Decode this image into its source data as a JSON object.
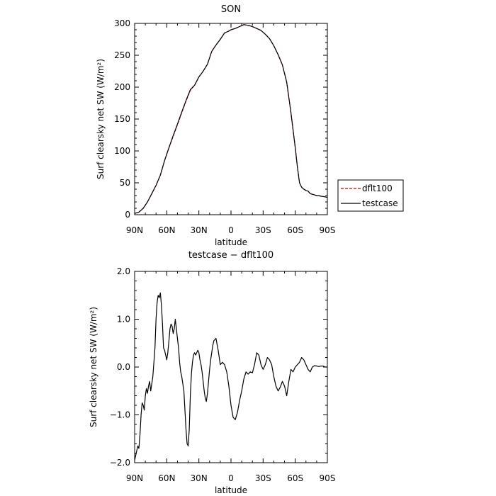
{
  "chart_data": [
    {
      "type": "line",
      "title": "SON",
      "xlabel": "latitude",
      "ylabel": "Surf clearsky net SW (W/m²)",
      "xlim": [
        90,
        -90
      ],
      "ylim": [
        0,
        300
      ],
      "xticks": [
        90,
        60,
        30,
        0,
        -30,
        -60,
        -90
      ],
      "xticklabels": [
        "90N",
        "60N",
        "30N",
        "0",
        "30S",
        "60S",
        "90S"
      ],
      "yticks": [
        0,
        50,
        100,
        150,
        200,
        250,
        300
      ],
      "yticklabels": [
        "0",
        "50",
        "100",
        "150",
        "200",
        "250",
        "300"
      ],
      "legend": {
        "position": "right",
        "entries": [
          "dflt100",
          "testcase"
        ]
      },
      "series": [
        {
          "name": "dflt100",
          "color": "#cc0000",
          "dash": "dashed",
          "x": [
            90,
            86,
            82,
            78,
            74,
            70,
            66,
            62,
            58,
            54,
            50,
            46,
            42,
            38,
            34,
            30,
            26,
            22,
            18,
            14,
            10,
            6,
            2,
            0,
            -4,
            -8,
            -12,
            -16,
            -20,
            -24,
            -28,
            -32,
            -36,
            -40,
            -44,
            -48,
            -52,
            -56,
            -60,
            -62,
            -64,
            -66,
            -68,
            -70,
            -72,
            -74,
            -76,
            -78,
            -80,
            -82,
            -84,
            -88,
            -90
          ],
          "y": [
            2,
            4,
            10,
            20,
            33,
            46,
            62,
            85,
            105,
            123,
            141,
            160,
            178,
            195,
            203,
            216,
            225,
            236,
            256,
            266,
            275,
            285,
            288,
            290,
            292,
            295,
            298,
            297,
            295,
            292,
            289,
            283,
            276,
            265,
            251,
            235,
            208,
            160,
            105,
            75,
            50,
            43,
            40,
            38,
            37,
            33,
            32,
            31,
            30,
            30,
            29,
            28,
            27
          ]
        },
        {
          "name": "testcase",
          "color": "#000000",
          "dash": "solid",
          "x": [
            90,
            86,
            82,
            78,
            74,
            70,
            66,
            62,
            58,
            54,
            50,
            46,
            42,
            38,
            34,
            30,
            26,
            22,
            18,
            14,
            10,
            6,
            2,
            0,
            -4,
            -8,
            -12,
            -16,
            -20,
            -24,
            -28,
            -32,
            -36,
            -40,
            -44,
            -48,
            -52,
            -56,
            -60,
            -62,
            -64,
            -66,
            -68,
            -70,
            -72,
            -74,
            -76,
            -78,
            -80,
            -82,
            -84,
            -88,
            -90
          ],
          "y": [
            2,
            4,
            10,
            20,
            33,
            46,
            62,
            85,
            105,
            124,
            142,
            161,
            179,
            196,
            203,
            216,
            225,
            236,
            256,
            266,
            275,
            285,
            288,
            290,
            292,
            295,
            298,
            297,
            295,
            292,
            289,
            283,
            276,
            265,
            251,
            235,
            208,
            160,
            105,
            75,
            50,
            43,
            40,
            38,
            37,
            33,
            32,
            31,
            30,
            30,
            29,
            28,
            27
          ]
        }
      ]
    },
    {
      "type": "line",
      "title": "testcase − dflt100",
      "xlabel": "latitude",
      "ylabel": "Surf clearsky net SW (W/m²)",
      "xlim": [
        90,
        -90
      ],
      "ylim": [
        -2.0,
        2.0
      ],
      "xticks": [
        90,
        60,
        30,
        0,
        -30,
        -60,
        -90
      ],
      "xticklabels": [
        "90N",
        "60N",
        "30N",
        "0",
        "30S",
        "60S",
        "90S"
      ],
      "yticks": [
        -2.0,
        -1.0,
        0.0,
        1.0,
        2.0
      ],
      "yticklabels": [
        "−2.0",
        "−1.0",
        "0.0",
        "1.0",
        "2.0"
      ],
      "series": [
        {
          "color": "#000000",
          "dash": "solid",
          "x": [
            90,
            88,
            87,
            86,
            85,
            84,
            83,
            82,
            81,
            80,
            79,
            78,
            77,
            76,
            75,
            73,
            71,
            70,
            69,
            68,
            67,
            66,
            65,
            64,
            63,
            62,
            61,
            60,
            59,
            58,
            57,
            56,
            55,
            54,
            53,
            52,
            51,
            50,
            49,
            48,
            47,
            46,
            45,
            44,
            43,
            42,
            41,
            40,
            39,
            38,
            37,
            36,
            35,
            34,
            33,
            32,
            31,
            30,
            29,
            28,
            27,
            26,
            25,
            24,
            23,
            22,
            21,
            20,
            19,
            18,
            17,
            16,
            14,
            12,
            10,
            8,
            6,
            4,
            2,
            0,
            -2,
            -4,
            -6,
            -8,
            -10,
            -12,
            -14,
            -16,
            -18,
            -20,
            -22,
            -24,
            -26,
            -28,
            -30,
            -32,
            -34,
            -36,
            -38,
            -40,
            -42,
            -44,
            -46,
            -48,
            -50,
            -52,
            -54,
            -56,
            -58,
            -60,
            -62,
            -64,
            -66,
            -68,
            -70,
            -72,
            -74,
            -76,
            -78,
            -80,
            -82,
            -84,
            -86,
            -88,
            -90
          ],
          "y": [
            -1.95,
            -1.75,
            -1.65,
            -1.7,
            -1.4,
            -1.0,
            -0.75,
            -0.8,
            -0.9,
            -0.6,
            -0.45,
            -0.55,
            -0.4,
            -0.3,
            -0.5,
            -0.2,
            0.4,
            1.0,
            1.35,
            1.5,
            1.45,
            1.55,
            1.3,
            0.9,
            0.4,
            0.35,
            0.25,
            0.15,
            0.3,
            0.55,
            0.8,
            0.9,
            0.85,
            0.7,
            0.8,
            1.0,
            0.8,
            0.6,
            0.4,
            0.1,
            -0.1,
            -0.2,
            -0.35,
            -0.5,
            -0.9,
            -1.3,
            -1.6,
            -1.65,
            -1.3,
            -0.6,
            -0.15,
            0.1,
            0.25,
            0.3,
            0.25,
            0.3,
            0.35,
            0.3,
            0.15,
            0.05,
            -0.1,
            -0.3,
            -0.5,
            -0.65,
            -0.72,
            -0.55,
            -0.3,
            -0.05,
            0.15,
            0.3,
            0.45,
            0.55,
            0.6,
            0.35,
            0.05,
            0.1,
            0.05,
            -0.1,
            -0.4,
            -0.8,
            -1.05,
            -1.1,
            -0.95,
            -0.7,
            -0.5,
            -0.25,
            -0.1,
            -0.15,
            -0.1,
            -0.12,
            0.05,
            0.3,
            0.25,
            0.05,
            -0.05,
            0.05,
            0.2,
            0.15,
            0.05,
            -0.2,
            -0.4,
            -0.5,
            -0.42,
            -0.3,
            -0.4,
            -0.6,
            -0.3,
            -0.05,
            -0.1,
            0.0,
            0.05,
            0.1,
            0.2,
            0.15,
            0.05,
            -0.05,
            -0.1,
            0.0,
            0.03,
            0.02,
            0.01,
            0.02,
            0.02,
            0.0,
            0.0
          ]
        }
      ]
    }
  ]
}
